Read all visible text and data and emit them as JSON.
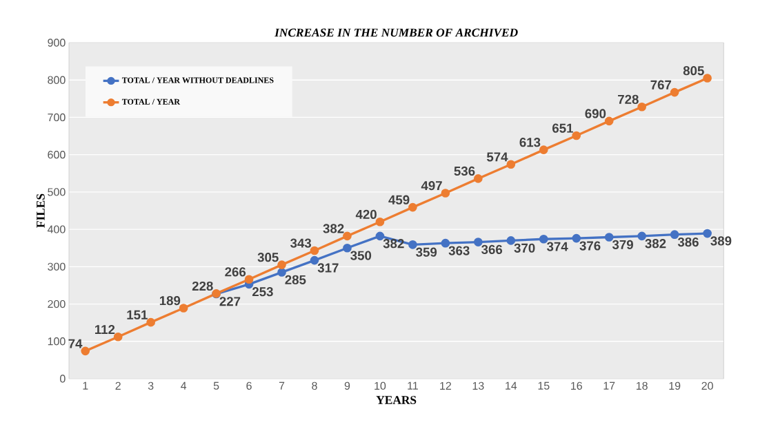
{
  "chart_data": {
    "type": "line",
    "title": "INCREASE IN THE NUMBER OF ARCHIVED",
    "xlabel": "YEARS",
    "ylabel": "FILES",
    "x": [
      1,
      2,
      3,
      4,
      5,
      6,
      7,
      8,
      9,
      10,
      11,
      12,
      13,
      14,
      15,
      16,
      17,
      18,
      19,
      20
    ],
    "series": [
      {
        "name": "TOTAL / YEAR WITHOUT DEADLINES",
        "color": "#4472c4",
        "values": [
          null,
          null,
          null,
          null,
          227,
          253,
          285,
          317,
          350,
          382,
          359,
          363,
          366,
          370,
          374,
          376,
          379,
          382,
          386,
          389
        ]
      },
      {
        "name": "TOTAL / YEAR",
        "color": "#ed7d31",
        "values": [
          74,
          112,
          151,
          189,
          228,
          266,
          305,
          343,
          382,
          420,
          459,
          497,
          536,
          574,
          613,
          651,
          690,
          728,
          767,
          805
        ]
      }
    ],
    "xlim": [
      0.5,
      20.5
    ],
    "xticks": [
      1,
      2,
      3,
      4,
      5,
      6,
      7,
      8,
      9,
      10,
      11,
      12,
      13,
      14,
      15,
      16,
      17,
      18,
      19,
      20
    ],
    "ylim": [
      0,
      900
    ],
    "yticks": [
      0,
      100,
      200,
      300,
      400,
      500,
      600,
      700,
      800,
      900
    ],
    "grid": "y",
    "legend": "top left",
    "marker": "circle",
    "line_style": "solid",
    "data_labels": true
  }
}
